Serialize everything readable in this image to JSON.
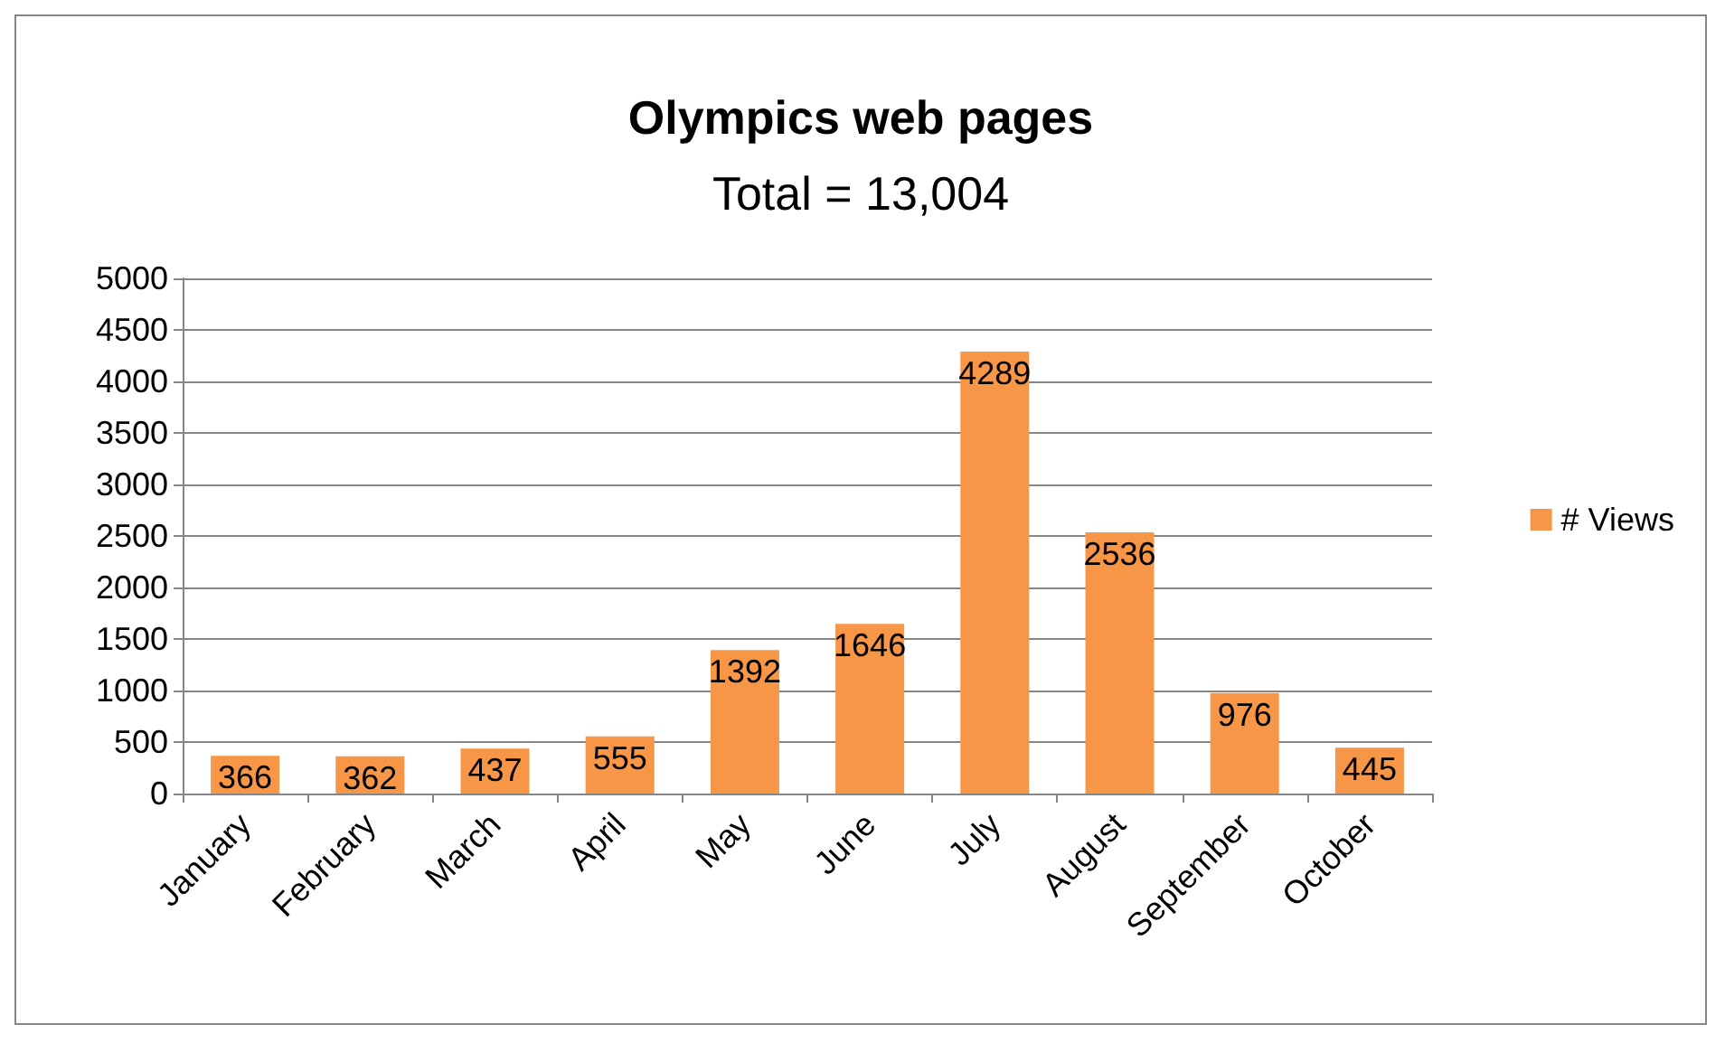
{
  "chart_data": {
    "type": "bar",
    "title": "Olympics web pages",
    "subtitle": "Total = 13,004",
    "categories": [
      "January",
      "February",
      "March",
      "April",
      "May",
      "June",
      "July",
      "August",
      "September",
      "October"
    ],
    "series": [
      {
        "name": "# Views",
        "color": "#f79646",
        "values": [
          366,
          362,
          437,
          555,
          1392,
          1646,
          4289,
          2536,
          976,
          445
        ]
      }
    ],
    "ylim": [
      0,
      5000
    ],
    "yticks": [
      0,
      500,
      1000,
      1500,
      2000,
      2500,
      3000,
      3500,
      4000,
      4500,
      5000
    ],
    "grid": "y",
    "legend": "right",
    "data_labels": true
  }
}
